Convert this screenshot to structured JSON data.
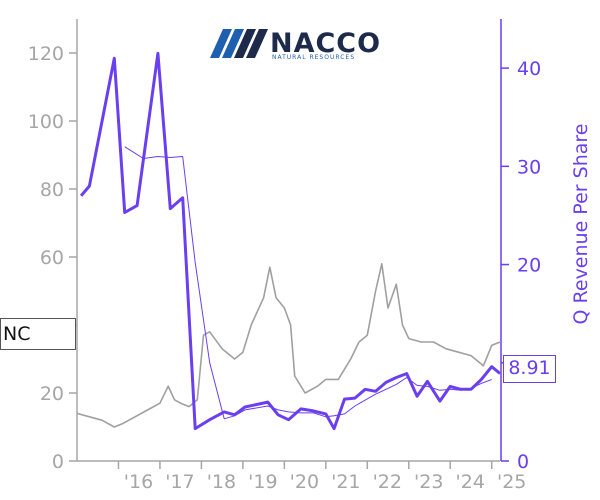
{
  "logo": {
    "wordmark": "NACCO",
    "tagline": "NATURAL RESOURCES"
  },
  "ticker": "NC",
  "latest_value_label": "8.91",
  "colors": {
    "price": "#a0a0a0",
    "revenue": "#6a3ff0",
    "left_axis": "#a6a6a6",
    "logo_navy": "#1d2a4a",
    "logo_blue": "#1f5fb0"
  },
  "chart_data": {
    "type": "line",
    "title": "",
    "xlabel": "",
    "ylabel_left": "",
    "ylabel_right": "Q Revenue Per Share",
    "x_ticks": [
      "'16",
      "'17",
      "'18",
      "'19",
      "'20",
      "'21",
      "'22",
      "'23",
      "'24",
      "'25"
    ],
    "x_tick_years": [
      2016,
      2017,
      2018,
      2019,
      2020,
      2021,
      2022,
      2023,
      2024,
      2025
    ],
    "xlim": [
      2015.0,
      2025.2
    ],
    "y_left": {
      "ticks": [
        0,
        20,
        40,
        60,
        80,
        100,
        120
      ],
      "lim": [
        0,
        130
      ]
    },
    "y_right": {
      "ticks": [
        0,
        10,
        20,
        30,
        40
      ],
      "lim": [
        0,
        45
      ]
    },
    "grid": false,
    "series": [
      {
        "name": "NC",
        "axis": "left",
        "points": [
          [
            2015.0,
            14
          ],
          [
            2015.3,
            13
          ],
          [
            2015.6,
            12
          ],
          [
            2015.9,
            10
          ],
          [
            2016.1,
            11
          ],
          [
            2016.4,
            13
          ],
          [
            2016.7,
            15
          ],
          [
            2017.0,
            17
          ],
          [
            2017.2,
            22
          ],
          [
            2017.35,
            18
          ],
          [
            2017.5,
            17
          ],
          [
            2017.7,
            16
          ],
          [
            2017.9,
            18
          ],
          [
            2018.05,
            37
          ],
          [
            2018.2,
            38
          ],
          [
            2018.5,
            33
          ],
          [
            2018.8,
            30
          ],
          [
            2019.0,
            32
          ],
          [
            2019.2,
            40
          ],
          [
            2019.5,
            48
          ],
          [
            2019.65,
            57
          ],
          [
            2019.8,
            48
          ],
          [
            2020.0,
            45
          ],
          [
            2020.15,
            40
          ],
          [
            2020.25,
            25
          ],
          [
            2020.5,
            20
          ],
          [
            2020.8,
            22
          ],
          [
            2021.0,
            24
          ],
          [
            2021.3,
            24
          ],
          [
            2021.6,
            30
          ],
          [
            2021.8,
            35
          ],
          [
            2022.0,
            37
          ],
          [
            2022.2,
            50
          ],
          [
            2022.35,
            58
          ],
          [
            2022.5,
            45
          ],
          [
            2022.7,
            52
          ],
          [
            2022.85,
            40
          ],
          [
            2023.0,
            36
          ],
          [
            2023.3,
            35
          ],
          [
            2023.6,
            35
          ],
          [
            2023.9,
            33
          ],
          [
            2024.2,
            32
          ],
          [
            2024.5,
            31
          ],
          [
            2024.8,
            28
          ],
          [
            2025.0,
            34
          ],
          [
            2025.2,
            35
          ]
        ]
      },
      {
        "name": "",
        "axis": "right",
        "points": [
          [
            2015.1,
            27.0
          ],
          [
            2015.3,
            28.0
          ],
          [
            2015.9,
            41.0
          ],
          [
            2016.15,
            25.3
          ],
          [
            2016.45,
            26.0
          ],
          [
            2016.95,
            41.5
          ],
          [
            2017.25,
            25.7
          ],
          [
            2017.55,
            26.8
          ],
          [
            2017.85,
            3.3
          ],
          [
            2018.2,
            4.2
          ],
          [
            2018.55,
            5.0
          ],
          [
            2018.8,
            4.7
          ],
          [
            2019.05,
            5.5
          ],
          [
            2019.6,
            6.0
          ],
          [
            2019.85,
            4.7
          ],
          [
            2020.1,
            4.2
          ],
          [
            2020.4,
            5.3
          ],
          [
            2020.7,
            5.1
          ],
          [
            2021.0,
            4.8
          ],
          [
            2021.2,
            3.3
          ],
          [
            2021.45,
            6.3
          ],
          [
            2021.7,
            6.4
          ],
          [
            2021.95,
            7.3
          ],
          [
            2022.2,
            7.1
          ],
          [
            2022.45,
            8.0
          ],
          [
            2022.7,
            8.5
          ],
          [
            2022.95,
            8.9
          ],
          [
            2023.2,
            6.6
          ],
          [
            2023.45,
            8.1
          ],
          [
            2023.75,
            6.1
          ],
          [
            2024.0,
            7.6
          ],
          [
            2024.25,
            7.3
          ],
          [
            2024.5,
            7.3
          ],
          [
            2024.75,
            8.3
          ],
          [
            2025.0,
            9.6
          ],
          [
            2025.2,
            8.91
          ]
        ]
      },
      {
        "name": "",
        "axis": "right",
        "points": [
          [
            2016.15,
            32.0
          ],
          [
            2016.6,
            30.8
          ],
          [
            2016.95,
            31.0
          ],
          [
            2017.25,
            30.9
          ],
          [
            2017.55,
            31.0
          ],
          [
            2017.85,
            20.2
          ],
          [
            2018.2,
            10.0
          ],
          [
            2018.55,
            4.3
          ],
          [
            2018.8,
            4.6
          ],
          [
            2019.05,
            5.2
          ],
          [
            2019.6,
            5.6
          ],
          [
            2019.85,
            5.2
          ],
          [
            2020.1,
            5.0
          ],
          [
            2020.4,
            4.9
          ],
          [
            2020.7,
            4.9
          ],
          [
            2021.0,
            4.5
          ],
          [
            2021.2,
            4.6
          ],
          [
            2021.45,
            4.8
          ],
          [
            2021.7,
            5.6
          ],
          [
            2021.95,
            6.2
          ],
          [
            2022.2,
            6.8
          ],
          [
            2022.45,
            7.3
          ],
          [
            2022.7,
            7.8
          ],
          [
            2022.95,
            8.5
          ],
          [
            2023.2,
            7.7
          ],
          [
            2023.45,
            7.6
          ],
          [
            2023.75,
            7.2
          ],
          [
            2024.0,
            7.3
          ],
          [
            2024.25,
            7.2
          ],
          [
            2024.5,
            7.4
          ],
          [
            2024.75,
            7.9
          ],
          [
            2025.0,
            8.3
          ]
        ]
      }
    ]
  }
}
